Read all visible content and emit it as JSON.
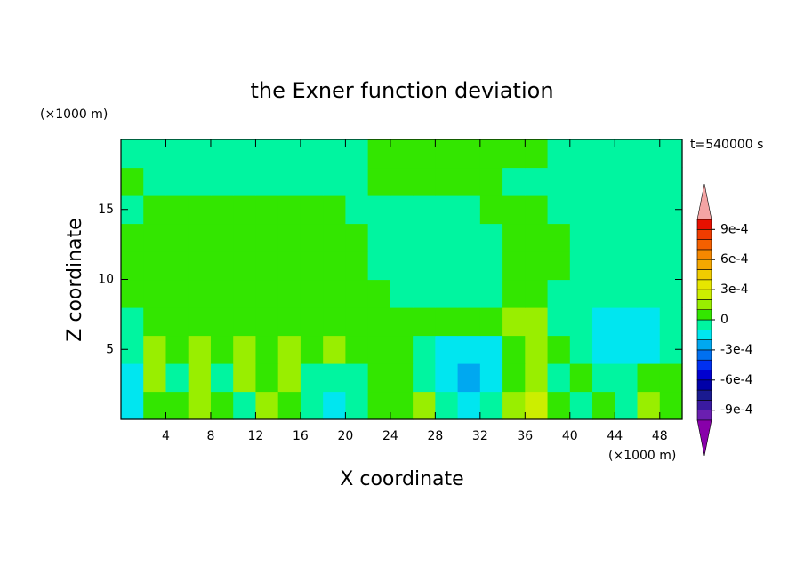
{
  "chart_data": {
    "type": "contour",
    "title": "the Exner function deviation",
    "xlabel": "X coordinate",
    "ylabel": "Z coordinate",
    "xunit": "(×1000 m)",
    "yunit": "(×1000 m)",
    "annotation": "t=540000 s",
    "xlim": [
      0,
      50
    ],
    "ylim": [
      0,
      20
    ],
    "xticks": [
      4,
      8,
      12,
      16,
      20,
      24,
      28,
      32,
      36,
      40,
      44,
      48
    ],
    "yticks": [
      5,
      10,
      15
    ],
    "x": [
      1,
      3,
      5,
      7,
      9,
      11,
      13,
      15,
      17,
      19,
      21,
      23,
      25,
      27,
      29,
      31,
      33,
      35,
      37,
      39,
      41,
      43,
      45,
      47,
      49
    ],
    "y": [
      1,
      3,
      5,
      7,
      9,
      11,
      13,
      15,
      17,
      19
    ],
    "z": [
      [
        -0.00015,
        5e-05,
        5e-05,
        0.00015,
        5e-05,
        -5e-05,
        0.00015,
        5e-05,
        -5e-05,
        -0.00015,
        -5e-05,
        5e-05,
        5e-05,
        0.00015,
        -5e-05,
        -0.00015,
        -5e-05,
        0.00015,
        0.00025,
        5e-05,
        -5e-05,
        5e-05,
        -5e-05,
        0.00015,
        5e-05
      ],
      [
        -0.00015,
        0.00015,
        -5e-05,
        0.00015,
        -5e-05,
        0.00015,
        5e-05,
        0.00015,
        -5e-05,
        -5e-05,
        -5e-05,
        5e-05,
        5e-05,
        -5e-05,
        -0.00015,
        -0.00025,
        -0.00015,
        5e-05,
        0.00015,
        -5e-05,
        5e-05,
        -5e-05,
        -5e-05,
        5e-05,
        5e-05
      ],
      [
        -5e-05,
        0.00015,
        5e-05,
        0.00015,
        5e-05,
        0.00015,
        5e-05,
        0.00015,
        5e-05,
        0.00015,
        5e-05,
        5e-05,
        5e-05,
        -5e-05,
        -0.00015,
        -0.00015,
        -0.00015,
        5e-05,
        0.00015,
        5e-05,
        -5e-05,
        -0.00015,
        -0.00015,
        -0.00015,
        -5e-05
      ],
      [
        -5e-05,
        5e-05,
        5e-05,
        5e-05,
        5e-05,
        5e-05,
        5e-05,
        5e-05,
        5e-05,
        5e-05,
        5e-05,
        5e-05,
        5e-05,
        5e-05,
        5e-05,
        5e-05,
        5e-05,
        0.00015,
        0.00015,
        -5e-05,
        -5e-05,
        -0.00015,
        -0.00015,
        -0.00015,
        -5e-05
      ],
      [
        5e-05,
        5e-05,
        5e-05,
        5e-05,
        5e-05,
        5e-05,
        5e-05,
        5e-05,
        5e-05,
        5e-05,
        5e-05,
        5e-05,
        -5e-05,
        -5e-05,
        -5e-05,
        -5e-05,
        -5e-05,
        5e-05,
        5e-05,
        -5e-05,
        -5e-05,
        -5e-05,
        -5e-05,
        -5e-05,
        -5e-05
      ],
      [
        5e-05,
        5e-05,
        5e-05,
        5e-05,
        5e-05,
        5e-05,
        5e-05,
        5e-05,
        5e-05,
        5e-05,
        5e-05,
        -5e-05,
        -5e-05,
        -5e-05,
        -5e-05,
        -5e-05,
        -5e-05,
        5e-05,
        5e-05,
        5e-05,
        -5e-05,
        -5e-05,
        -5e-05,
        -5e-05,
        -5e-05
      ],
      [
        5e-05,
        5e-05,
        5e-05,
        5e-05,
        5e-05,
        5e-05,
        5e-05,
        5e-05,
        5e-05,
        5e-05,
        5e-05,
        -5e-05,
        -5e-05,
        -5e-05,
        -5e-05,
        -5e-05,
        -5e-05,
        5e-05,
        5e-05,
        5e-05,
        -5e-05,
        -5e-05,
        -5e-05,
        -5e-05,
        -5e-05
      ],
      [
        -5e-05,
        5e-05,
        5e-05,
        5e-05,
        5e-05,
        5e-05,
        5e-05,
        5e-05,
        5e-05,
        5e-05,
        -5e-05,
        -5e-05,
        -5e-05,
        -5e-05,
        -5e-05,
        -5e-05,
        5e-05,
        5e-05,
        5e-05,
        -5e-05,
        -5e-05,
        -5e-05,
        -5e-05,
        -5e-05,
        -5e-05
      ],
      [
        5e-05,
        -5e-05,
        -5e-05,
        -5e-05,
        -5e-05,
        -5e-05,
        -5e-05,
        -5e-05,
        -5e-05,
        -5e-05,
        -5e-05,
        5e-05,
        5e-05,
        5e-05,
        5e-05,
        5e-05,
        5e-05,
        -5e-05,
        -5e-05,
        -5e-05,
        -5e-05,
        -5e-05,
        -5e-05,
        -5e-05,
        -5e-05
      ],
      [
        -5e-05,
        -5e-05,
        -5e-05,
        -5e-05,
        -5e-05,
        -5e-05,
        -5e-05,
        -5e-05,
        -5e-05,
        -5e-05,
        -5e-05,
        5e-05,
        5e-05,
        5e-05,
        5e-05,
        5e-05,
        5e-05,
        5e-05,
        5e-05,
        -5e-05,
        -5e-05,
        -5e-05,
        -5e-05,
        -5e-05,
        -5e-05
      ]
    ],
    "levels": [
      -0.001,
      -0.0009,
      -0.0008,
      -0.0007,
      -0.0006,
      -0.0005,
      -0.0004,
      -0.0003,
      -0.0002,
      -0.0001,
      0,
      0.0001,
      0.0002,
      0.0003,
      0.0004,
      0.0005,
      0.0006,
      0.0007,
      0.0008,
      0.0009,
      0.001
    ],
    "colors": [
      "#6a1fb0",
      "#3a1aa0",
      "#1a1a90",
      "#0000a8",
      "#0000d0",
      "#0030f0",
      "#0070f0",
      "#00a8f0",
      "#00e6f0",
      "#00f5a0",
      "#33e600",
      "#99ee00",
      "#ccee00",
      "#e6e600",
      "#f0cc00",
      "#f5a800",
      "#f58800",
      "#f56000",
      "#f03c00",
      "#e81000"
    ],
    "under_color": "#8800aa",
    "over_color": "#f4a4a4",
    "colorbar_ticks": [
      {
        "value": 0.0009,
        "label": "9e-4"
      },
      {
        "value": 0.0006,
        "label": "6e-4"
      },
      {
        "value": 0.0003,
        "label": "3e-4"
      },
      0,
      {
        "value": -0.0003,
        "label": "-3e-4"
      },
      {
        "value": -0.0006,
        "label": "-6e-4"
      },
      {
        "value": -0.0009,
        "label": "-9e-4"
      }
    ]
  }
}
